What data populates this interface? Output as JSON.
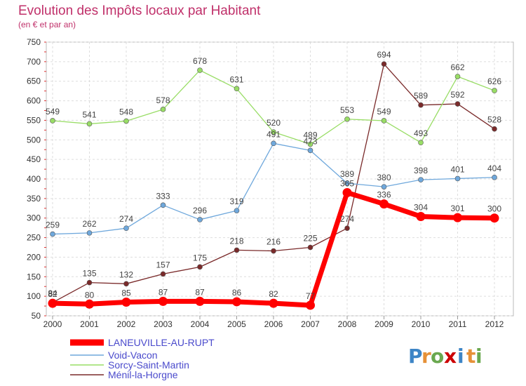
{
  "chart_data": {
    "type": "line",
    "title": "Evolution des Impôts locaux par Habitant",
    "subtitle": "(en € et par an)",
    "x": [
      "2000",
      "2001",
      "2002",
      "2003",
      "2004",
      "2005",
      "2006",
      "2007",
      "2008",
      "2009",
      "2010",
      "2011",
      "2012"
    ],
    "yticks": [
      50,
      100,
      150,
      200,
      250,
      300,
      350,
      400,
      450,
      500,
      550,
      600,
      650,
      700,
      750
    ],
    "ylim": [
      50,
      750
    ],
    "grid": true,
    "legend_position": "bottom-left",
    "series": [
      {
        "name": "LANEUVILLE-AU-RUPT",
        "color": "#ff0000",
        "values": [
          82,
          80,
          85,
          87,
          87,
          86,
          82,
          77,
          365,
          336,
          304,
          301,
          300
        ],
        "labels": [
          "82",
          "80",
          "85",
          "87",
          "87",
          "86",
          "82",
          "77",
          "365",
          "336",
          "304",
          "301",
          "300"
        ]
      },
      {
        "name": "Void-Vacon",
        "color": "#6fa8dc",
        "values": [
          259,
          262,
          274,
          333,
          296,
          319,
          491,
          473,
          389,
          380,
          398,
          401,
          404
        ],
        "labels": [
          "259",
          "262",
          "274",
          "333",
          "296",
          "319",
          "491",
          "473",
          "389",
          "380",
          "398",
          "401",
          "404"
        ]
      },
      {
        "name": "Sorcy-Saint-Martin",
        "color": "#99dd66",
        "values": [
          549,
          541,
          548,
          578,
          678,
          631,
          520,
          489,
          553,
          549,
          493,
          662,
          626
        ],
        "labels": [
          "549",
          "541",
          "548",
          "578",
          "678",
          "631",
          "520",
          "489",
          "553",
          "549",
          "493",
          "662",
          "626"
        ]
      },
      {
        "name": "Ménil-la-Horgne",
        "color": "#7a2a2a",
        "values": [
          84,
          135,
          132,
          157,
          175,
          218,
          216,
          225,
          274,
          694,
          589,
          592,
          528
        ],
        "labels": [
          "84",
          "135",
          "132",
          "157",
          "175",
          "218",
          "216",
          "225",
          "274",
          "694",
          "589",
          "592",
          "528"
        ]
      }
    ]
  },
  "brand": {
    "letters": [
      "P",
      "r",
      "o",
      "x",
      "i",
      "t",
      "i"
    ],
    "colors": [
      "#3d85c6",
      "#e69138",
      "#6aa84f",
      "#cc0000",
      "#3d85c6",
      "#e69138",
      "#6aa84f"
    ]
  }
}
